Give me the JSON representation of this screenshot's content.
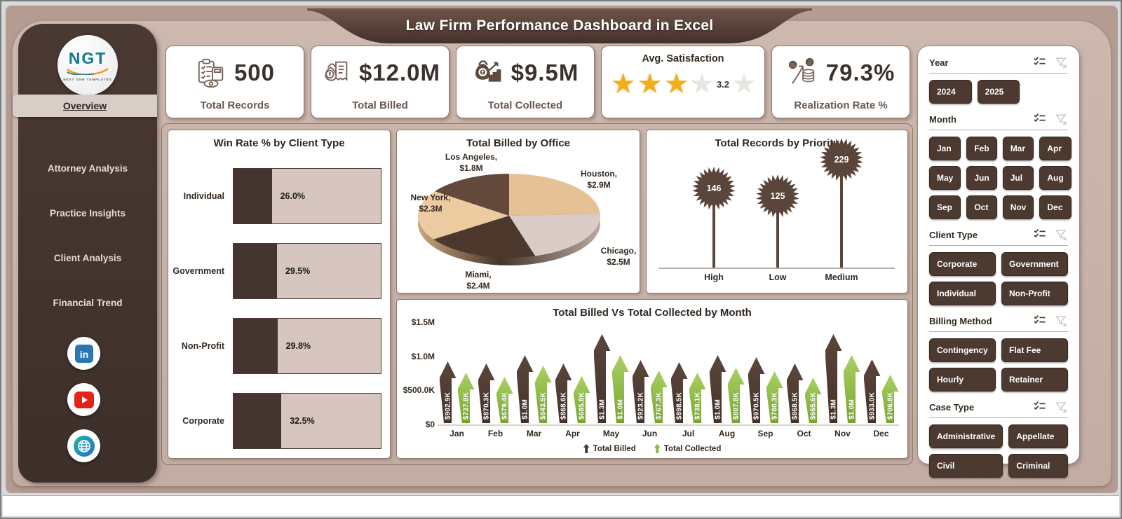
{
  "title": "Law Firm Performance Dashboard in Excel",
  "logo": {
    "text": "NGT",
    "subtext": "NEXT GEN TEMPLATES"
  },
  "sidebar": {
    "items": [
      {
        "label": "Overview",
        "active": true
      },
      {
        "label": "Attorney Analysis",
        "active": false
      },
      {
        "label": "Practice Insights",
        "active": false
      },
      {
        "label": "Client Analysis",
        "active": false
      },
      {
        "label": "Financial Trend",
        "active": false
      }
    ],
    "socials": [
      "linkedin",
      "youtube",
      "website"
    ]
  },
  "kpis": [
    {
      "value": "500",
      "label": "Total Records",
      "icon": "records-icon"
    },
    {
      "value": "$12.0M",
      "label": "Total Billed",
      "icon": "billed-icon"
    },
    {
      "value": "$9.5M",
      "label": "Total Collected",
      "icon": "collected-icon"
    },
    {
      "label": "Avg. Satisfaction",
      "rating": 3.2,
      "rating_display": "3.2"
    },
    {
      "value": "79.3%",
      "label": "Realization Rate %",
      "icon": "realization-icon"
    }
  ],
  "chart_data": [
    {
      "type": "bar",
      "orientation": "horizontal",
      "title": "Win Rate % by Client Type",
      "categories": [
        "Individual",
        "Government",
        "Non-Profit",
        "Corporate"
      ],
      "values": [
        26.0,
        29.5,
        29.8,
        32.5
      ],
      "labels": [
        "26.0%",
        "29.5%",
        "29.8%",
        "32.5%"
      ],
      "xlim": [
        0,
        100
      ],
      "bar_color": "#453530",
      "track_color": "#d6c6bf"
    },
    {
      "type": "pie",
      "title": "Total Billed by Office",
      "labels": [
        "Houston",
        "Chicago",
        "Miami",
        "New York",
        "Los Angeles"
      ],
      "values": [
        2.9,
        2.5,
        2.4,
        2.3,
        1.8
      ],
      "value_labels": [
        "Houston,|$2.9M",
        "Chicago,|$2.5M",
        "Miami,|$2.4M",
        "New York,|$2.3M",
        "Los Angeles,|$1.8M"
      ],
      "colors": [
        "#e7c196",
        "#d9ccc6",
        "#4c382c",
        "#eccba1",
        "#63493c"
      ]
    },
    {
      "type": "lollipop",
      "title": "Total Records by Priority",
      "categories": [
        "High",
        "Low",
        "Medium"
      ],
      "values": [
        146,
        125,
        229
      ],
      "marker_color": "#5a453a"
    },
    {
      "type": "bar",
      "title": "Total Billed Vs Total Collected by Month",
      "categories": [
        "Jan",
        "Feb",
        "Mar",
        "Apr",
        "May",
        "Jun",
        "Jul",
        "Aug",
        "Sep",
        "Oct",
        "Nov",
        "Dec"
      ],
      "unit": "thousand USD",
      "ylim": [
        0,
        1500
      ],
      "ytick_labels": [
        "$0",
        "$500.0K",
        "$1.0M",
        "$1.5M"
      ],
      "series": [
        {
          "name": "Total Billed",
          "color": "#4c3930",
          "values": [
            902.9,
            870.3,
            1000,
            868.6,
            1300,
            923.2,
            898.5,
            1000,
            970.5,
            868.5,
            1300,
            933.0
          ],
          "labels": [
            "$902.9K",
            "$870.3K",
            "$1.0M",
            "$868.6K",
            "$1.3M",
            "$923.2K",
            "$898.5K",
            "$1.0M",
            "$970.5K",
            "$868.5K",
            "$1.3M",
            "$933.0K"
          ]
        },
        {
          "name": "Total Collected",
          "color": "#86b93f",
          "values": [
            737.8,
            679.4,
            843.5,
            685.8,
            1000,
            767.3,
            738.1,
            807.8,
            760.3,
            665.6,
            1000,
            706.8
          ],
          "labels": [
            "$737.8K",
            "$679.4K",
            "$843.5K",
            "$685.8K",
            "$1.0M",
            "$767.3K",
            "$738.1K",
            "$807.8K",
            "$760.3K",
            "$665.6K",
            "$1.0M",
            "$706.8K"
          ]
        }
      ]
    }
  ],
  "filters": [
    {
      "name": "Year",
      "columns": 3,
      "options": [
        "2024",
        "2025"
      ]
    },
    {
      "name": "Month",
      "columns": 4,
      "options": [
        "Jan",
        "Feb",
        "Mar",
        "Apr",
        "May",
        "Jun",
        "Jul",
        "Aug",
        "Sep",
        "Oct",
        "Nov",
        "Dec"
      ]
    },
    {
      "name": "Client Type",
      "columns": 2,
      "options": [
        "Corporate",
        "Government",
        "Individual",
        "Non-Profit"
      ]
    },
    {
      "name": "Billing Method",
      "columns": 2,
      "options": [
        "Contingency",
        "Flat Fee",
        "Hourly",
        "Retainer"
      ]
    },
    {
      "name": "Case Type",
      "columns": 2,
      "options": [
        "Administrative",
        "Appellate",
        "Civil",
        "Criminal"
      ]
    }
  ],
  "colors": {
    "background": "#c2aca3",
    "sidebar": "#43332c",
    "banner": "#4a362e",
    "accent_brown": "#4c3930",
    "billed_brown": "#4c3930",
    "collected_green": "#86b93f",
    "star_gold": "#f2ae14",
    "card_border": "#8d7668"
  }
}
